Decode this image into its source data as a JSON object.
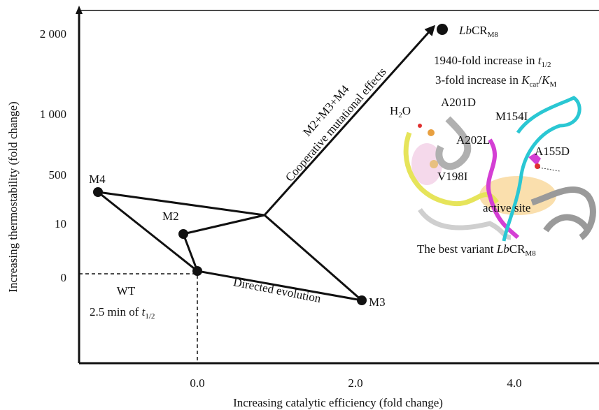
{
  "axes": {
    "y_title": "Increasing thermostability (fold change)",
    "x_title": "Increasing catalytic efficiency (fold change)",
    "y_ticks": [
      "2 000",
      "1 000",
      "500",
      "10",
      "0"
    ],
    "x_ticks": [
      "0.0",
      "2.0",
      "4.0"
    ]
  },
  "nodes": [
    {
      "label": "M4"
    },
    {
      "label": "M2"
    },
    {
      "label": "M3"
    }
  ],
  "wt": {
    "label": "WT",
    "note": "2.5 min of ",
    "note_var": "t",
    "note_sub": "1/2"
  },
  "best": {
    "italic": "Lb",
    "main": "CR",
    "sub": "M8"
  },
  "arrow_labels": [
    "M2+M3+M4",
    "Cooperative mutational effects"
  ],
  "path_label": "Directed evolution",
  "annotations": {
    "line1": {
      "text": "1940-fold increase in ",
      "var": "t",
      "sub": "1/2"
    },
    "line2": {
      "text": "3-fold increase in ",
      "var1": "K",
      "sub1": "cat",
      "slash": "/",
      "var2": "K",
      "sub2": "M"
    }
  },
  "inset": {
    "water": {
      "main": "H",
      "sub": "2",
      "end": "O"
    },
    "residues": [
      "A201D",
      "M154I",
      "A202L",
      "A155D",
      "V198I"
    ],
    "site": "active site",
    "caption": {
      "text": "The best variant ",
      "italic": "Lb",
      "main": "CR",
      "sub": "M8"
    }
  }
}
